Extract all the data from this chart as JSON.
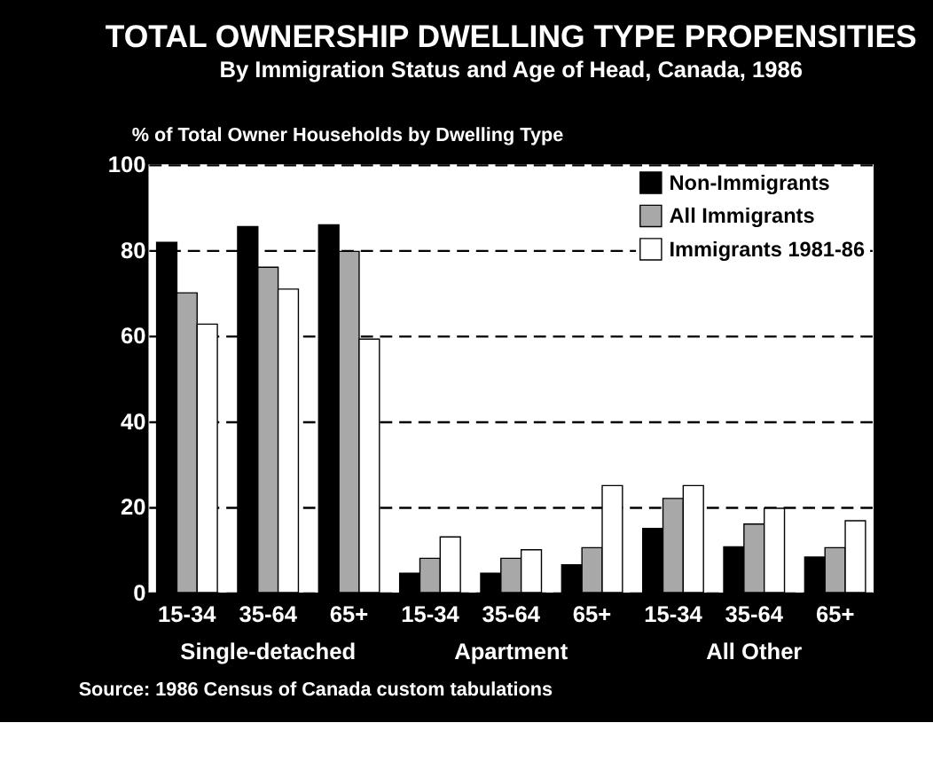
{
  "chart_data": {
    "type": "bar",
    "title": "TOTAL OWNERSHIP DWELLING TYPE PROPENSITIES",
    "subtitle": "By Immigration Status and Age of Head, Canada, 1986",
    "ylabel": "% of Total Owner Households by Dwelling Type",
    "categories": [
      "15-34",
      "35-64",
      "65+",
      "15-34",
      "35-64",
      "65+",
      "15-34",
      "35-64",
      "65+"
    ],
    "series": [
      {
        "name": "Non-Immigrants",
        "color": "#000000",
        "values": [
          81.8,
          85.5,
          85.9,
          4.5,
          4.5,
          6.5,
          15,
          10.7,
          8.3
        ]
      },
      {
        "name": "All Immigrants",
        "color": "#a8a8a8",
        "values": [
          70,
          76,
          79.7,
          8,
          8,
          10.5,
          22,
          16,
          10.5
        ]
      },
      {
        "name": "Immigrants 1981-86",
        "color": "#ffffff",
        "values": [
          62.7,
          70.9,
          59.2,
          13,
          10,
          25,
          25,
          19.7,
          16.8
        ]
      }
    ],
    "ylim": [
      0,
      100
    ],
    "yticks": [
      0,
      20,
      40,
      60,
      80,
      100
    ],
    "grid": "y",
    "legend": "top right",
    "annotations": [
      "Single-detached",
      "Apartment",
      "All Other",
      "Source: 1986 Census of Canada custom tabulations"
    ]
  }
}
